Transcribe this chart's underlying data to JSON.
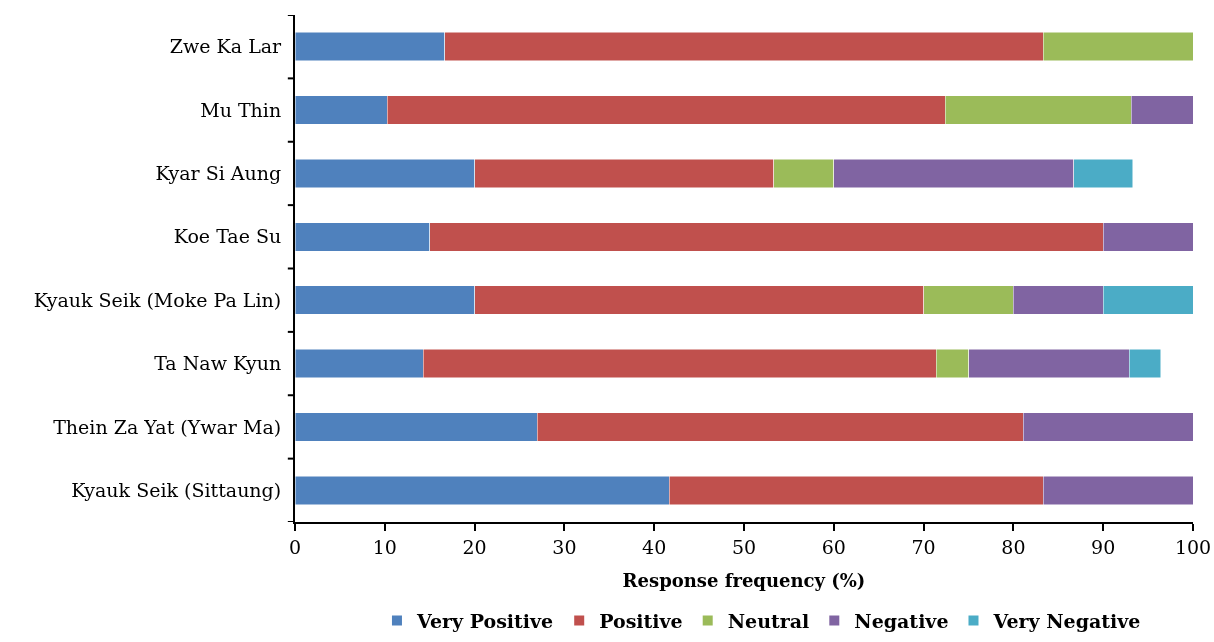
{
  "chart_data": {
    "type": "bar",
    "orientation": "horizontal",
    "stacked": true,
    "categories": [
      "Zwe Ka Lar",
      "Mu Thin",
      "Kyar Si Aung",
      "Koe Tae Su",
      "Kyauk Seik (Moke Pa Lin)",
      "Ta Naw Kyun",
      "Thein Za Yat (Ywar Ma)",
      "Kyauk Seik (Sittaung)"
    ],
    "series": [
      {
        "name": "Very Positive",
        "color": "#4f81bd",
        "values": [
          16.7,
          10.3,
          20.0,
          15.0,
          20.0,
          14.3,
          27.0,
          41.7
        ]
      },
      {
        "name": "Positive",
        "color": "#c0504d",
        "values": [
          66.6,
          62.1,
          33.3,
          75.0,
          50.0,
          57.1,
          54.1,
          41.6
        ]
      },
      {
        "name": "Neutral",
        "color": "#9bbb59",
        "values": [
          16.7,
          20.7,
          6.7,
          null,
          10.0,
          3.6,
          null,
          null
        ]
      },
      {
        "name": "Negative",
        "color": "#8064a2",
        "values": [
          null,
          6.9,
          26.7,
          10.0,
          10.0,
          17.9,
          18.9,
          16.7
        ]
      },
      {
        "name": "Very Negative",
        "color": "#4bacc6",
        "values": [
          null,
          null,
          6.6,
          null,
          10.0,
          3.5,
          null,
          null
        ]
      }
    ],
    "xlabel": "Response frequency (%)",
    "xlim": [
      0,
      100
    ],
    "xticks": [
      0,
      10,
      20,
      30,
      40,
      50,
      60,
      70,
      80,
      90,
      100
    ],
    "grid": false,
    "legend": "bottom"
  }
}
